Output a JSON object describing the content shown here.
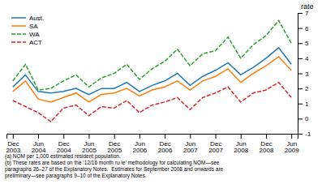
{
  "chart_data": {
    "type": "line",
    "ylabel": "rate",
    "annotations": [
      "(a) NOM per 1,000 estimated resident population.",
      "(b) These rates are based on the ‘12/16 month ru le’ methodology for calculating NOM—see\nparagraphs 26–27 of the Explanatory Notes.  Estimates for September 2008 and onwards are\npreliminary—see paragraphs 9–10 of the Explanatory Notes."
    ],
    "categories": [
      "Dec\n2003",
      null,
      "Jun\n2004",
      null,
      "Dec\n2004",
      null,
      "Jun\n2005",
      null,
      "Dec\n2005",
      null,
      "Jun\n2006",
      null,
      "Dec\n2006",
      null,
      "Jun\n2007",
      null,
      "Dec\n2007",
      null,
      "Jun\n2008",
      null,
      "Dec\n2008",
      null,
      "Jun\n2009"
    ],
    "series": [
      {
        "name": "Aust.",
        "line_style": "solid",
        "values": [
          2.1,
          2.9,
          1.8,
          1.7,
          1.8,
          2.0,
          1.6,
          2.0,
          2.0,
          2.4,
          1.8,
          2.2,
          2.5,
          3.0,
          2.2,
          2.8,
          3.2,
          3.7,
          2.9,
          3.4,
          4.0,
          4.7,
          3.6
        ]
      },
      {
        "name": "SA",
        "line_style": "solid",
        "values": [
          1.8,
          2.5,
          1.3,
          1.1,
          1.4,
          1.7,
          1.1,
          1.6,
          1.7,
          2.0,
          1.5,
          1.9,
          2.1,
          2.5,
          1.9,
          2.5,
          2.8,
          3.3,
          2.4,
          3.0,
          3.5,
          4.1,
          3.2
        ]
      },
      {
        "name": "WA",
        "line_style": "dashed",
        "values": [
          2.5,
          3.6,
          1.9,
          2.0,
          2.5,
          2.9,
          2.1,
          2.7,
          3.0,
          3.6,
          2.6,
          3.3,
          3.8,
          4.6,
          3.5,
          4.3,
          4.5,
          5.4,
          4.0,
          4.9,
          5.5,
          6.5,
          5.0
        ]
      },
      {
        "name": "ACT",
        "line_style": "dashed",
        "values": [
          1.2,
          0.8,
          0.4,
          -0.2,
          0.7,
          0.9,
          0.2,
          0.8,
          0.7,
          1.2,
          0.4,
          0.9,
          1.1,
          1.4,
          0.6,
          1.4,
          1.7,
          2.1,
          1.1,
          1.7,
          1.9,
          2.4,
          1.4
        ]
      }
    ],
    "ylim": [
      -1,
      7
    ],
    "yticks": [
      -1,
      0,
      1,
      2,
      3,
      4,
      5,
      6,
      7
    ],
    "legend": "upper left",
    "grid": false
  }
}
